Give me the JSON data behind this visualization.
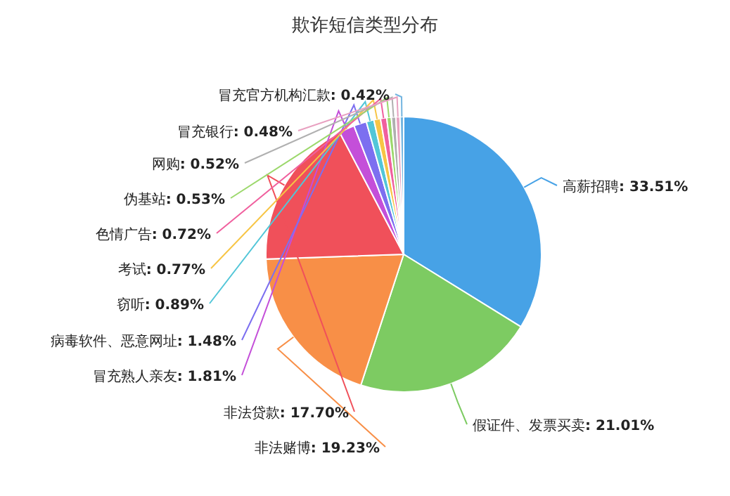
{
  "chart_data": {
    "type": "pie",
    "title": "欺诈短信类型分布",
    "categories": [
      "高薪招聘",
      "假证件、发票买卖",
      "非法赌博",
      "非法贷款",
      "冒充熟人亲友",
      "病毒软件、恶意网址",
      "窃听",
      "考试",
      "色情广告",
      "伪基站",
      "网购",
      "冒充银行",
      "冒充官方机构汇款"
    ],
    "values": [
      33.51,
      21.01,
      19.23,
      17.7,
      1.81,
      1.48,
      0.89,
      0.77,
      0.72,
      0.53,
      0.52,
      0.48,
      0.42
    ],
    "value_labels": [
      ": 33.51%",
      ": 21.01%",
      ": 19.23%",
      ": 17.70%",
      ": 1.81%",
      ": 1.48%",
      ": 0.89%",
      ": 0.77%",
      ": 0.72%",
      ": 0.53%",
      ": 0.52%",
      ": 0.48%",
      ": 0.42%"
    ],
    "colors": [
      "#47a2e6",
      "#7dcb62",
      "#f88f47",
      "#f0505a",
      "#c44fd9",
      "#7c6ff0",
      "#52c6d8",
      "#f7c545",
      "#f0609e",
      "#9cd86c",
      "#b0b0b0",
      "#e8a0c0",
      "#74b5e0"
    ]
  }
}
